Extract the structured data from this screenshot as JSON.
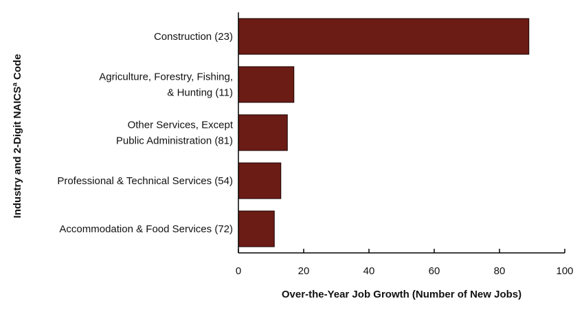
{
  "chart_data": {
    "type": "bar",
    "orientation": "horizontal",
    "categories": [
      [
        "Construction (23)"
      ],
      [
        "Agriculture, Forestry, Fishing,",
        "& Hunting (11)"
      ],
      [
        "Other Services, Except",
        "Public Administration (81)"
      ],
      [
        "Professional & Technical Services (54)"
      ],
      [
        "Accommodation & Food Services (72)"
      ]
    ],
    "values": [
      89,
      17,
      15,
      13,
      11
    ],
    "xlabel": "Over-the-Year Job Growth (Number of New Jobs)",
    "ylabel": "Industry and 2-Digit NAICSª Code",
    "xlim": [
      0,
      100
    ],
    "xticks": [
      0,
      20,
      40,
      60,
      80,
      100
    ],
    "grid": false,
    "bar_color": "#6b1c15",
    "bar_edge_color": "#1a0000"
  }
}
